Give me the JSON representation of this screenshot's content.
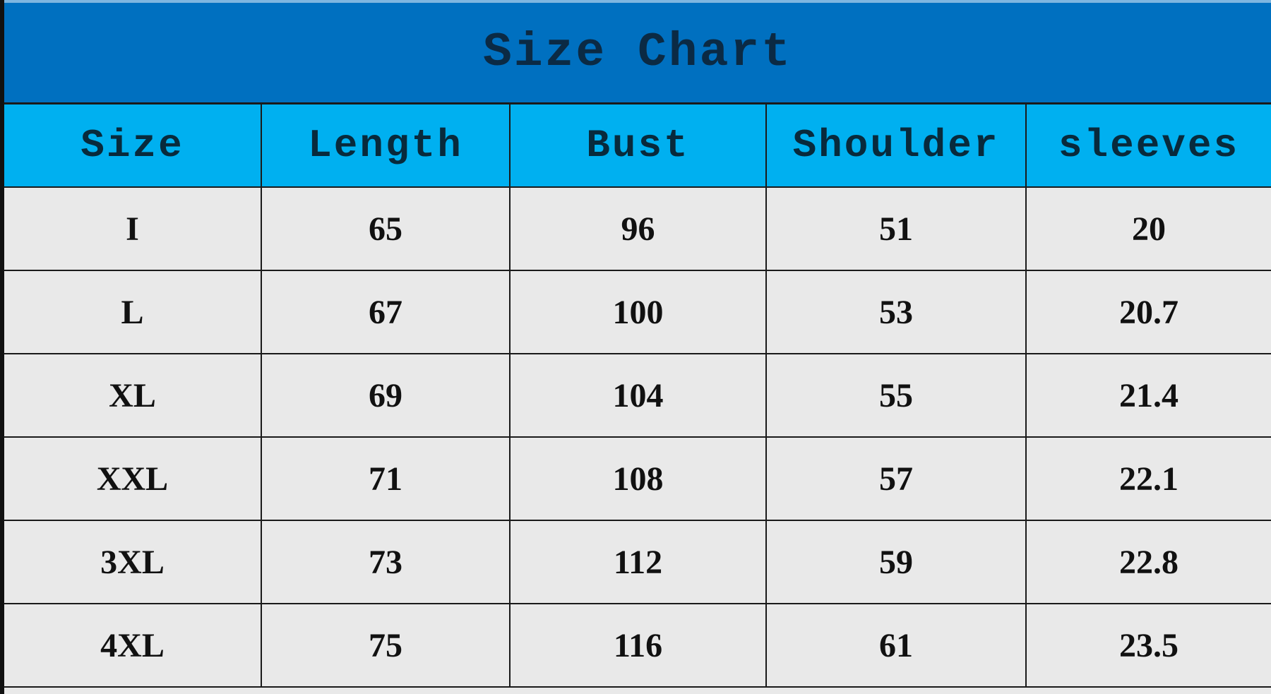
{
  "title": "Size Chart",
  "colors": {
    "title_bg": "#0070c0",
    "header_bg": "#00b0f0",
    "cell_bg": "#e9e9e9"
  },
  "columns": [
    "Size",
    "Length",
    "Bust",
    "Shoulder",
    "sleeves"
  ],
  "rows": [
    [
      "I",
      "65",
      "96",
      "51",
      "20"
    ],
    [
      "L",
      "67",
      "100",
      "53",
      "20.7"
    ],
    [
      "XL",
      "69",
      "104",
      "55",
      "21.4"
    ],
    [
      "XXL",
      "71",
      "108",
      "57",
      "22.1"
    ],
    [
      "3XL",
      "73",
      "112",
      "59",
      "22.8"
    ],
    [
      "4XL",
      "75",
      "116",
      "61",
      "23.5"
    ]
  ]
}
